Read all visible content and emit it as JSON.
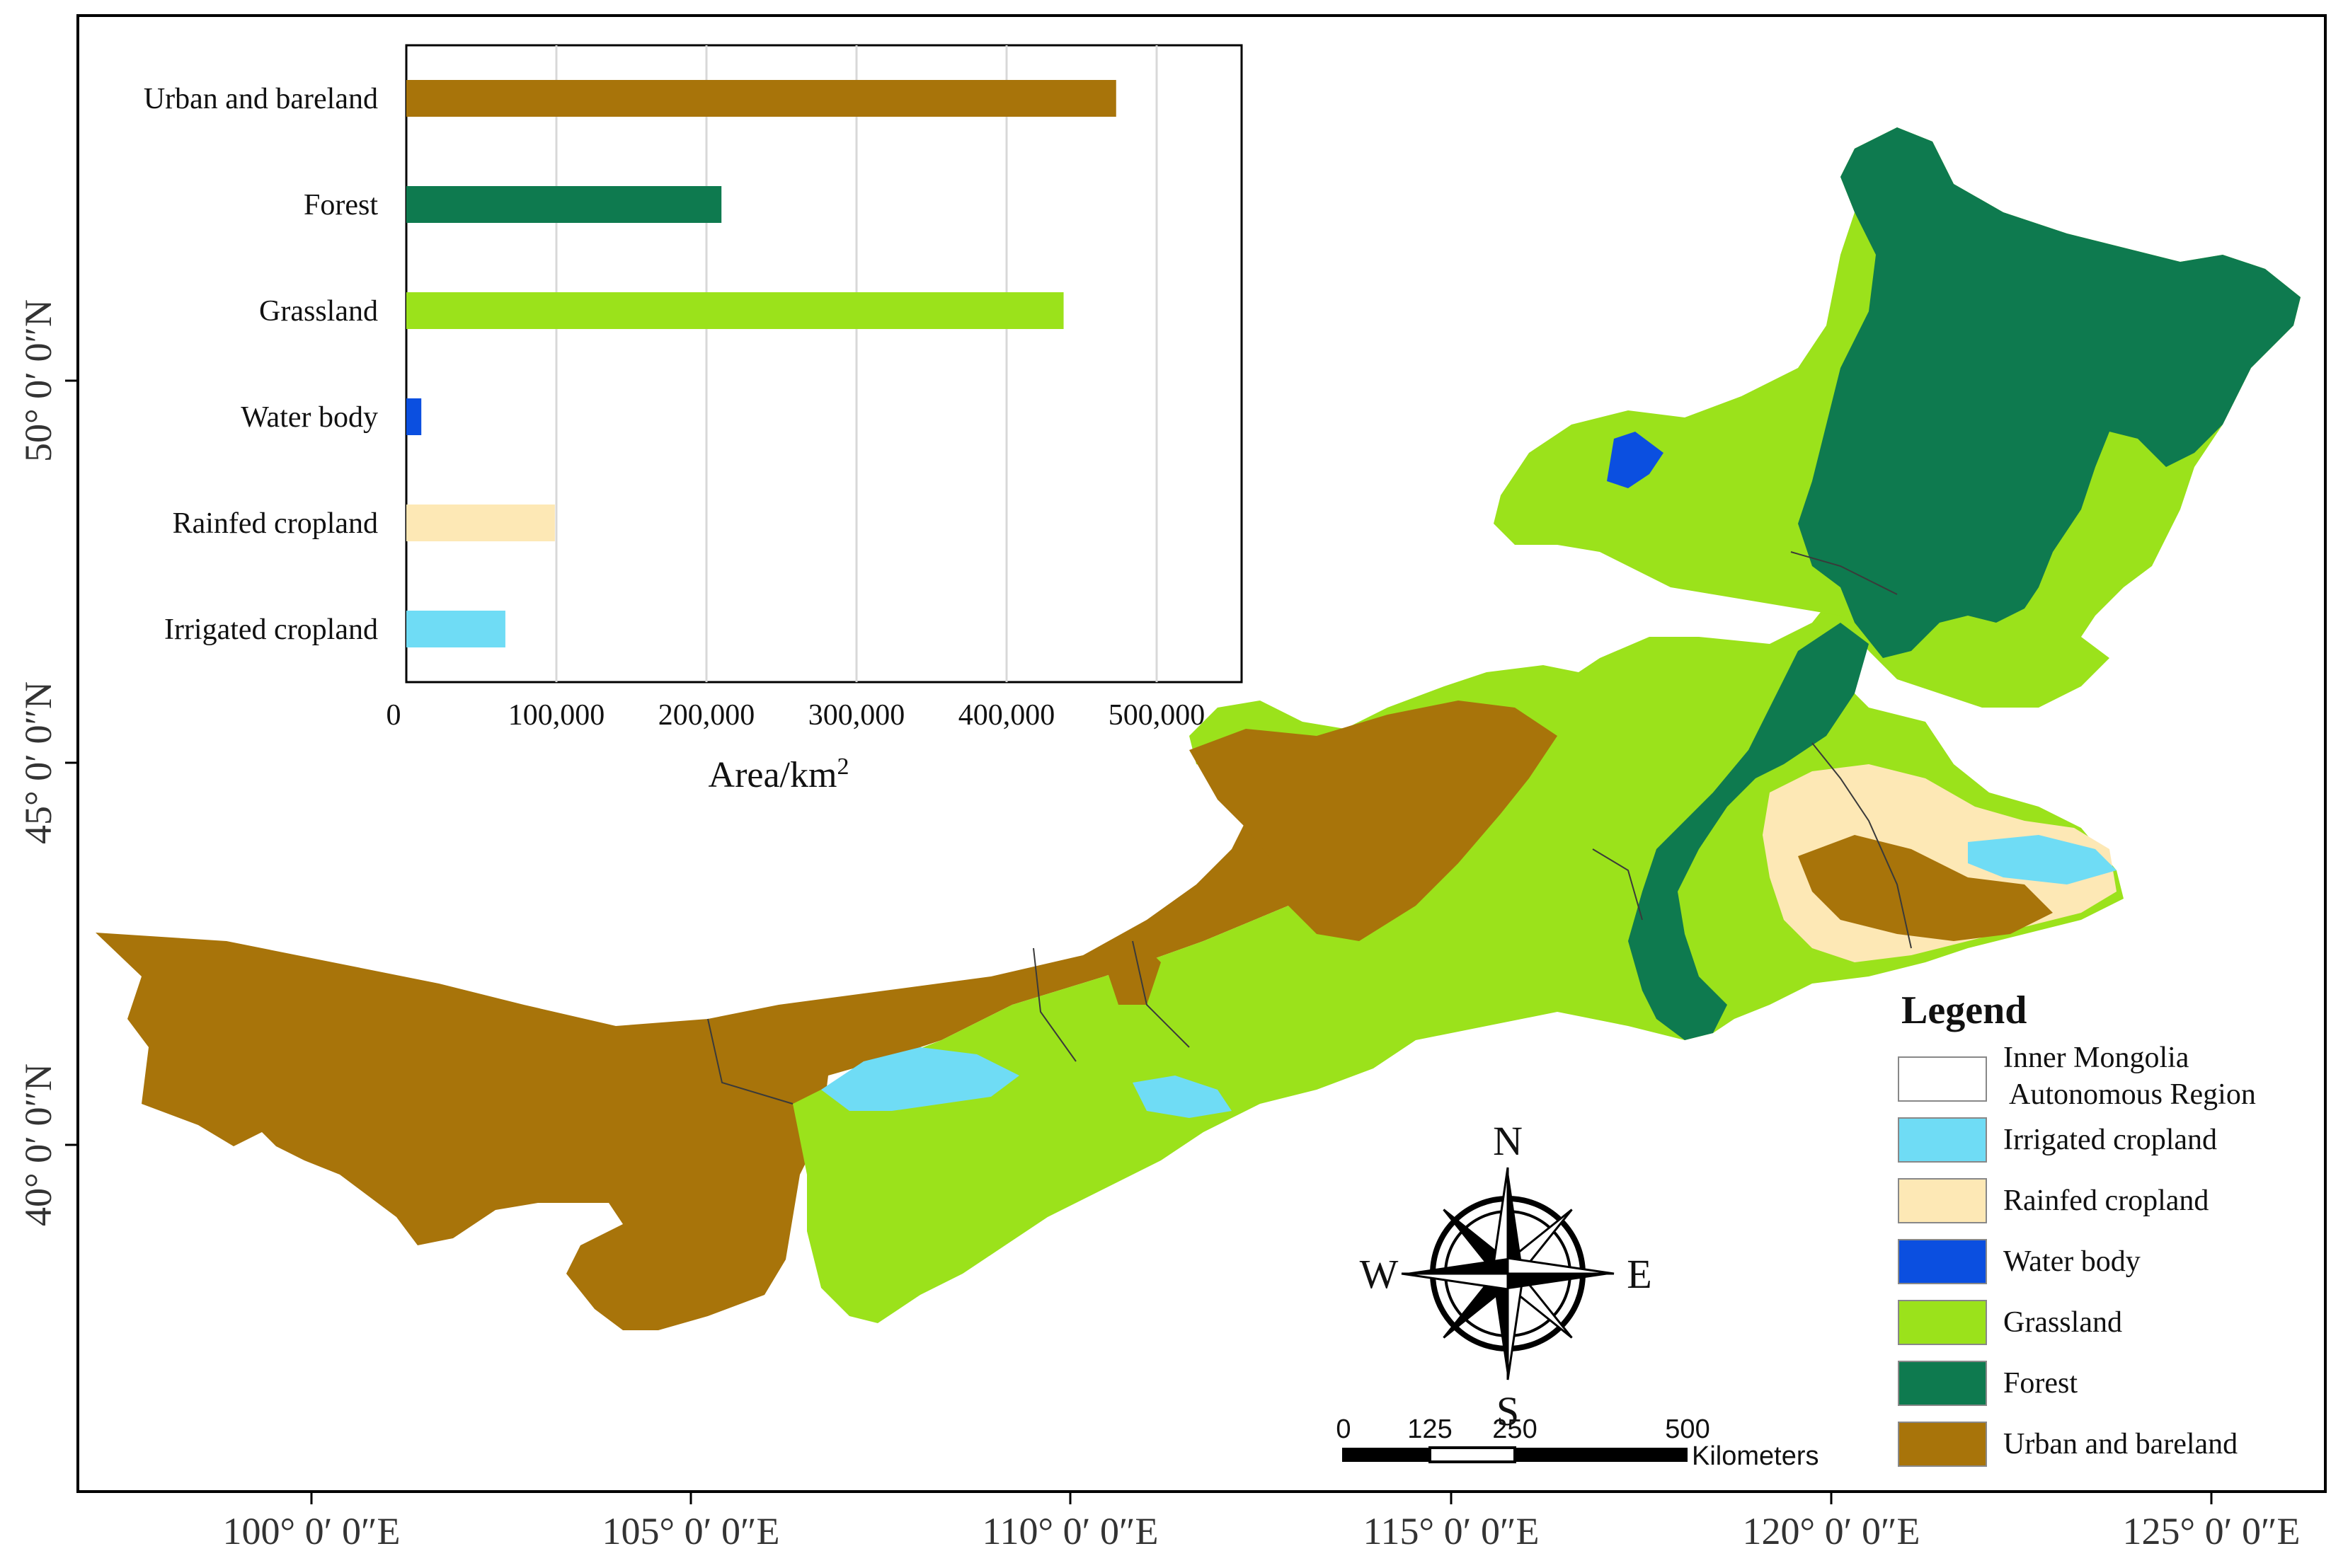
{
  "map": {
    "lon_labels": [
      "100° 0′ 0″E",
      "105° 0′ 0″E",
      "110° 0′ 0″E",
      "115° 0′ 0″E",
      "120° 0′ 0″E",
      "125° 0′ 0″E"
    ],
    "lat_labels": [
      "50° 0′ 0″N",
      "45° 0′ 0″N",
      "40° 0′ 0″N"
    ],
    "colors": {
      "irrigated_cropland": "#6fdcf5",
      "rainfed_cropland": "#fde8b5",
      "water_body": "#0b4fe0",
      "grassland": "#9be21b",
      "forest": "#0e7a4f",
      "urban_and_bareland": "#a8740a"
    }
  },
  "chart_data": {
    "type": "bar",
    "orientation": "horizontal",
    "categories": [
      "Urban and bareland",
      "Forest",
      "Grassland",
      "Water body",
      "Rainfed cropland",
      "Irrigated cropland"
    ],
    "values": [
      473000,
      210000,
      438000,
      10000,
      99000,
      66000
    ],
    "colors": [
      "#a8740a",
      "#0e7a4f",
      "#9be21b",
      "#0b4fe0",
      "#fde8b5",
      "#6fdcf5"
    ],
    "xlim": [
      0,
      500000
    ],
    "xticks": [
      "0",
      "100,000",
      "200,000",
      "300,000",
      "400,000",
      "500,000"
    ],
    "xlabel": "Area/km",
    "xlabel_sup": "2",
    "grid": true
  },
  "legend": {
    "title": "Legend",
    "items": [
      {
        "label": "Inner Mongolia",
        "label2": "Autonomous Region",
        "color": "#ffffff"
      },
      {
        "label": "Irrigated cropland",
        "color": "#6fdcf5"
      },
      {
        "label": "Rainfed cropland",
        "color": "#fde8b5"
      },
      {
        "label": "Water body",
        "color": "#0b4fe0"
      },
      {
        "label": "Grassland",
        "color": "#9be21b"
      },
      {
        "label": "Forest",
        "color": "#0e7a4f"
      },
      {
        "label": "Urban and bareland",
        "color": "#a8740a"
      }
    ]
  },
  "compass": {
    "n": "N",
    "s": "S",
    "e": "E",
    "w": "W"
  },
  "scale_bar": {
    "labels": [
      "0",
      "125",
      "250",
      "500"
    ],
    "unit": "Kilometers"
  }
}
